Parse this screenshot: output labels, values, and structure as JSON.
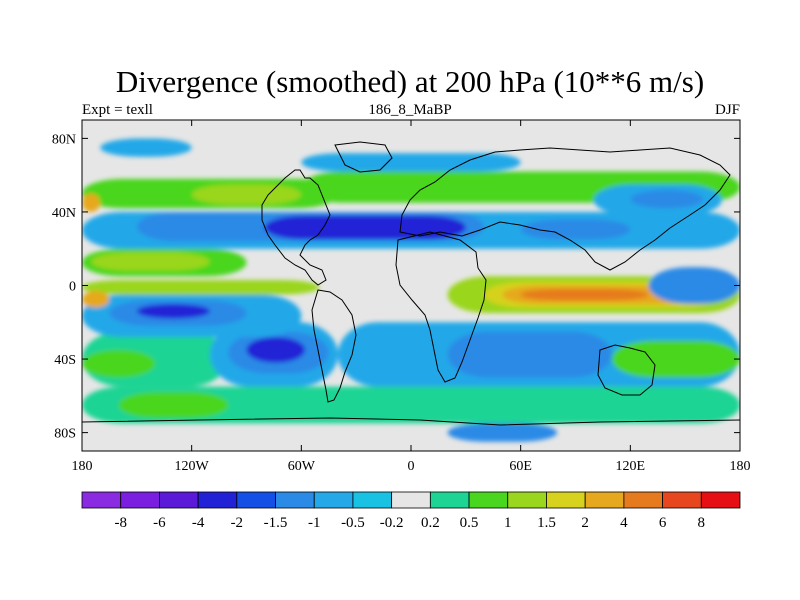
{
  "chart_data": {
    "type": "filled-contour-map",
    "title": "Divergence (smoothed) at 200 hPa (10**6 m/s)",
    "subtitle_left": "Expt = texll",
    "subtitle_center": "186_8_MaBP",
    "subtitle_right": "DJF",
    "lon_range": [
      -180,
      180
    ],
    "lat_range": [
      -90,
      90
    ],
    "x_ticks": [
      {
        "value": -180,
        "label": "180"
      },
      {
        "value": -120,
        "label": "120W"
      },
      {
        "value": -60,
        "label": "60W"
      },
      {
        "value": 0,
        "label": "0"
      },
      {
        "value": 60,
        "label": "60E"
      },
      {
        "value": 120,
        "label": "120E"
      },
      {
        "value": 180,
        "label": "180"
      }
    ],
    "y_ticks": [
      {
        "value": 80,
        "label": "80N"
      },
      {
        "value": 40,
        "label": "40N"
      },
      {
        "value": 0,
        "label": "0"
      },
      {
        "value": -40,
        "label": "40S"
      },
      {
        "value": -80,
        "label": "80S"
      }
    ],
    "colorbar": {
      "colors": [
        "#8a2be2",
        "#7a1ee0",
        "#5a1ad8",
        "#2121d6",
        "#1550e6",
        "#2a8ae6",
        "#24a8e8",
        "#19c2e2",
        "#e6e6e6",
        "#1ed494",
        "#4ad61e",
        "#9ad61e",
        "#d6d21e",
        "#e6a81e",
        "#e67a1e",
        "#e6471e",
        "#e60f14"
      ],
      "labels": [
        "-8",
        "-6",
        "-4",
        "-2",
        "-1.5",
        "-1",
        "-0.5",
        "-0.2",
        "0.2",
        "0.5",
        "1",
        "1.5",
        "2",
        "4",
        "6",
        "8"
      ]
    },
    "level_colors": {
      "-2": "#2121d6",
      "-1.5": "#1550e6",
      "-1": "#2a8ae6",
      "-0.5": "#24a8e8",
      "-0.2": "#19c2e2",
      "0": "#e6e6e6",
      "0.2": "#1ed494",
      "0.5": "#4ad61e",
      "1": "#9ad61e",
      "1.5": "#d6d21e",
      "2": "#e6a81e",
      "4": "#e67a1e"
    },
    "regions": [
      {
        "level": 0.2,
        "lon": [
          -180,
          180
        ],
        "lat": [
          -75,
          -55
        ]
      },
      {
        "level": 0.5,
        "lon": [
          -160,
          -100
        ],
        "lat": [
          -72,
          -58
        ]
      },
      {
        "level": 0.2,
        "lon": [
          -180,
          -100
        ],
        "lat": [
          -55,
          -25
        ]
      },
      {
        "level": 0.5,
        "lon": [
          -180,
          -140
        ],
        "lat": [
          -50,
          -35
        ]
      },
      {
        "level": -0.5,
        "lon": [
          -110,
          -40
        ],
        "lat": [
          -55,
          -20
        ]
      },
      {
        "level": -1,
        "lon": [
          -100,
          -45
        ],
        "lat": [
          -48,
          -25
        ]
      },
      {
        "level": -2,
        "lon": [
          -90,
          -58
        ],
        "lat": [
          -42,
          -28
        ]
      },
      {
        "level": -0.5,
        "lon": [
          -180,
          -60
        ],
        "lat": [
          -28,
          -5
        ]
      },
      {
        "level": -1,
        "lon": [
          -165,
          -90
        ],
        "lat": [
          -22,
          -8
        ]
      },
      {
        "level": -2,
        "lon": [
          -150,
          -110
        ],
        "lat": [
          -18,
          -10
        ]
      },
      {
        "level": 1,
        "lon": [
          -180,
          -50
        ],
        "lat": [
          -5,
          3
        ]
      },
      {
        "level": 2,
        "lon": [
          -180,
          -165
        ],
        "lat": [
          -12,
          -3
        ]
      },
      {
        "level": 0.5,
        "lon": [
          -180,
          -90
        ],
        "lat": [
          5,
          20
        ]
      },
      {
        "level": 1,
        "lon": [
          -175,
          -110
        ],
        "lat": [
          8,
          18
        ]
      },
      {
        "level": -0.5,
        "lon": [
          -180,
          180
        ],
        "lat": [
          20,
          40
        ]
      },
      {
        "level": -1,
        "lon": [
          -150,
          40
        ],
        "lat": [
          24,
          40
        ]
      },
      {
        "level": -2,
        "lon": [
          -80,
          30
        ],
        "lat": [
          25,
          38
        ]
      },
      {
        "level": -1,
        "lon": [
          60,
          120
        ],
        "lat": [
          25,
          36
        ]
      },
      {
        "level": 0.5,
        "lon": [
          -180,
          -40
        ],
        "lat": [
          42,
          58
        ]
      },
      {
        "level": 1,
        "lon": [
          -120,
          -60
        ],
        "lat": [
          44,
          55
        ]
      },
      {
        "level": 2,
        "lon": [
          -180,
          -170
        ],
        "lat": [
          40,
          50
        ]
      },
      {
        "level": 0.5,
        "lon": [
          -60,
          180
        ],
        "lat": [
          45,
          62
        ]
      },
      {
        "level": -0.5,
        "lon": [
          -60,
          60
        ],
        "lat": [
          62,
          72
        ]
      },
      {
        "level": -0.5,
        "lon": [
          100,
          170
        ],
        "lat": [
          38,
          55
        ]
      },
      {
        "level": -1,
        "lon": [
          120,
          160
        ],
        "lat": [
          42,
          52
        ]
      },
      {
        "level": 1,
        "lon": [
          20,
          180
        ],
        "lat": [
          -15,
          5
        ]
      },
      {
        "level": 1.5,
        "lon": [
          40,
          170
        ],
        "lat": [
          -12,
          2
        ]
      },
      {
        "level": 2,
        "lon": [
          50,
          160
        ],
        "lat": [
          -10,
          0
        ]
      },
      {
        "level": 4,
        "lon": [
          60,
          130
        ],
        "lat": [
          -8,
          -2
        ]
      },
      {
        "level": -1,
        "lon": [
          130,
          180
        ],
        "lat": [
          -10,
          10
        ]
      },
      {
        "level": -0.5,
        "lon": [
          -40,
          180
        ],
        "lat": [
          -55,
          -20
        ]
      },
      {
        "level": -1,
        "lon": [
          20,
          110
        ],
        "lat": [
          -50,
          -25
        ]
      },
      {
        "level": 0.5,
        "lon": [
          110,
          180
        ],
        "lat": [
          -50,
          -30
        ]
      },
      {
        "level": -0.5,
        "lon": [
          -170,
          -120
        ],
        "lat": [
          70,
          80
        ]
      },
      {
        "level": -1,
        "lon": [
          20,
          80
        ],
        "lat": [
          -85,
          -75
        ]
      }
    ]
  }
}
